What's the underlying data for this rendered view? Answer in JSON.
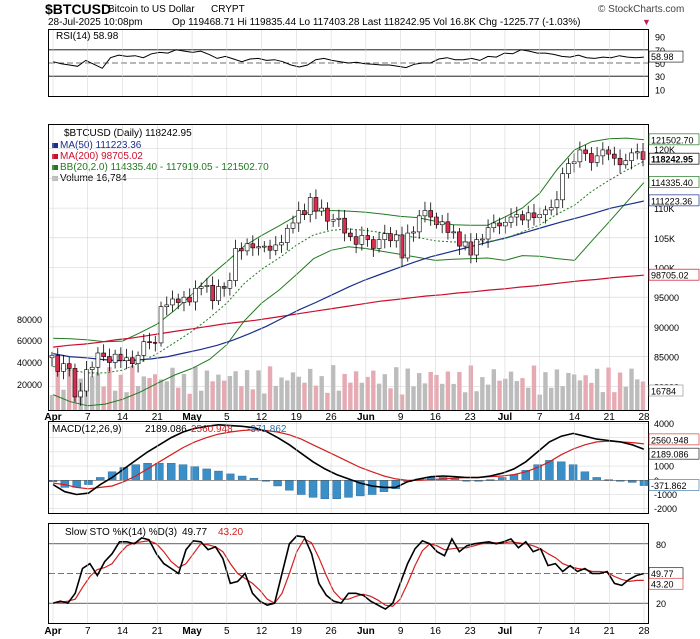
{
  "header": {
    "symbol": "$BTCUSD",
    "name": "Bitcoin to US Dollar",
    "exchange": "CRYPT",
    "copyright": "© StockCharts.com",
    "date": "28-Jul-2025 10:08pm",
    "quote": "Op 119468.71  Hi 119835.44  Lo 117403.28  Last 118242.95  Vol 16.8K  Chg -1225.77 (-1.03%)",
    "change_arrow": "▼"
  },
  "colors": {
    "up": "#ffffff",
    "down": "#d7304f",
    "candle_outline": "#000000",
    "ma50": "#1a2f8c",
    "ma200": "#c8102e",
    "bollinger": "#217a1f",
    "volume_up": "#bcbcbc",
    "volume_down": "#e6aab3",
    "macd_line": "#000000",
    "signal_line": "#d21f1f",
    "histogram": "#3a8fc9",
    "grid": "#d0d0d0"
  },
  "chart_data": {
    "type": "candlestick",
    "x_tick_labels": [
      "Apr",
      "7",
      "14",
      "21",
      "May",
      "5",
      "12",
      "19",
      "26",
      "Jun",
      "9",
      "16",
      "23",
      "Jul",
      "7",
      "14",
      "21",
      "28"
    ],
    "rsi": {
      "label": "RSI(14) 58.98",
      "ticks": [
        90,
        70,
        50,
        30,
        10
      ],
      "last": "58.98",
      "last_value": 58.98,
      "values": [
        52,
        49,
        47,
        45,
        54,
        48,
        42,
        58,
        62,
        60,
        61,
        58,
        64,
        66,
        65,
        70,
        68,
        66,
        68,
        63,
        57,
        60,
        56,
        52,
        56,
        57,
        54,
        55,
        52,
        47,
        44,
        47,
        55,
        57,
        54,
        52,
        50,
        51,
        49,
        48,
        47,
        47,
        45,
        43,
        48,
        50,
        50,
        56,
        58,
        55,
        55,
        57,
        54,
        60,
        59,
        65,
        64,
        70,
        68,
        65,
        65,
        63,
        60,
        59,
        62,
        58,
        57,
        59,
        58,
        61,
        59,
        58,
        59
      ]
    },
    "price": {
      "legend": [
        {
          "text": "$BTCUSD (Daily) 118242.95"
        },
        {
          "text": "MA(50) 111223.36"
        },
        {
          "text": "MA(200) 98705.02"
        },
        {
          "text": "BB(20,2.0) 114335.40 - 117919.05 - 121502.70"
        },
        {
          "text": "Volume 16,784"
        }
      ],
      "y_ticks": [
        "120K",
        "115K",
        "110K",
        "105K",
        "100K",
        "95000",
        "90000",
        "85000",
        "80000"
      ],
      "value_tags": [
        "121502.70",
        "118242.95",
        "114335.40",
        "111223.36",
        "98705.02"
      ],
      "ylim": [
        76000,
        124000
      ],
      "closes": [
        85200,
        82500,
        83800,
        83000,
        78200,
        79200,
        82800,
        83200,
        85600,
        85000,
        84000,
        85400,
        84300,
        84800,
        83800,
        85200,
        87500,
        87400,
        87300,
        93400,
        93700,
        94700,
        94100,
        95000,
        94200,
        96500,
        96800,
        97000,
        94400,
        96800,
        96500,
        97800,
        103200,
        102800,
        104000,
        103300,
        103500,
        103600,
        102900,
        103800,
        104200,
        106600,
        107500,
        109600,
        108900,
        111800,
        109500,
        110000,
        107800,
        108100,
        108300,
        105800,
        105200,
        103900,
        105400,
        104700,
        103200,
        104700,
        105700,
        104500,
        105500,
        101600,
        105800,
        106000,
        108700,
        109600,
        108500,
        107200,
        107700,
        105900,
        106000,
        103600,
        104300,
        102100,
        104700,
        104800,
        106700,
        107500,
        107000,
        107600,
        108500,
        108900,
        108000,
        109200,
        108400,
        108900,
        109700,
        110100,
        111400,
        115800,
        117500,
        117800,
        119800,
        119200,
        117700,
        118800,
        119800,
        119100,
        118400,
        117300,
        118000,
        119300,
        119500,
        118200
      ],
      "ma50": [
        85500,
        85000,
        84800,
        84500,
        84300,
        84400,
        84600,
        85000,
        85600,
        86200,
        86900,
        87800,
        88900,
        90100,
        91500,
        92900,
        94100,
        95400,
        96700,
        97900,
        98900,
        99900,
        100900,
        101800,
        102500,
        103200,
        103900,
        104600,
        105300,
        106100,
        106900,
        107700,
        108400,
        109200,
        110000,
        110600,
        111200
      ],
      "ma200": [
        86600,
        86900,
        87100,
        87400,
        87800,
        88100,
        88500,
        88900,
        89300,
        89700,
        90100,
        90500,
        90800,
        91100,
        91500,
        91900,
        92300,
        92700,
        93100,
        93500,
        93900,
        94300,
        94600,
        94900,
        95200,
        95400,
        95700,
        95900,
        96200,
        96400,
        96700,
        96900,
        97200,
        97500,
        97800,
        98000,
        98300,
        98500,
        98700
      ],
      "bb_upper": [
        88100,
        88000,
        87800,
        87500,
        87600,
        89000,
        90500,
        92800,
        95500,
        98500,
        101000,
        103600,
        105400,
        107000,
        108700,
        109500,
        109600,
        109500,
        109300,
        109000,
        108600,
        108400,
        107800,
        107200,
        107100,
        107100,
        108500,
        110000,
        112500,
        116500,
        119800,
        121200,
        121700,
        121800,
        121500
      ],
      "bb_lower": [
        78600,
        77400,
        76700,
        77000,
        77800,
        79000,
        80500,
        81900,
        83000,
        84500,
        87000,
        91000,
        94000,
        96200,
        98800,
        101500,
        102900,
        103500,
        103200,
        102700,
        102200,
        101700,
        101200,
        101400,
        101500,
        101600,
        101200,
        102000,
        101900,
        101500,
        101200,
        104500,
        107700,
        111000,
        114335
      ],
      "volume_label": "16784"
    },
    "macd": {
      "label": "MACD(12,26,9)",
      "macd_value": "2189.086",
      "signal_value": "2560.948",
      "hist_value": "-371.862",
      "ticks": [
        "4000",
        "3000",
        "2000",
        "1000",
        "0",
        "-1000",
        "-2000"
      ],
      "ylim": [
        -2300,
        4100
      ],
      "macd": [
        -300,
        -800,
        -1000,
        -900,
        -300,
        200,
        800,
        1400,
        2000,
        2500,
        3000,
        3400,
        3650,
        3800,
        3900,
        3850,
        3800,
        3700,
        3450,
        3000,
        2500,
        1900,
        1300,
        800,
        400,
        100,
        -200,
        -400,
        -500,
        -500,
        -100,
        100,
        250,
        300,
        250,
        200,
        200,
        300,
        500,
        800,
        1300,
        2000,
        2700,
        3100,
        3300,
        3100,
        2900,
        2800,
        2700,
        2500,
        2189
      ],
      "signal": [
        -200,
        -300,
        -500,
        -600,
        -500,
        -400,
        -100,
        300,
        800,
        1300,
        1800,
        2300,
        2700,
        3000,
        3250,
        3400,
        3500,
        3550,
        3500,
        3400,
        3200,
        2900,
        2500,
        2100,
        1700,
        1300,
        900,
        600,
        300,
        100,
        0,
        0,
        50,
        100,
        150,
        200,
        200,
        250,
        300,
        400,
        600,
        900,
        1300,
        1800,
        2200,
        2500,
        2700,
        2750,
        2700,
        2650,
        2561
      ]
    },
    "stoch": {
      "label": "Slow STO %K(14) %D(3)",
      "k_value": "49.77",
      "d_value": "43.20",
      "ticks": [
        "80",
        "50",
        "20"
      ],
      "ylim": [
        0,
        100
      ],
      "k": [
        20,
        22,
        20,
        30,
        55,
        60,
        48,
        62,
        70,
        82,
        82,
        80,
        86,
        84,
        70,
        60,
        55,
        50,
        74,
        83,
        82,
        74,
        77,
        65,
        40,
        42,
        50,
        30,
        22,
        18,
        20,
        50,
        80,
        88,
        87,
        70,
        40,
        28,
        22,
        20,
        30,
        30,
        28,
        22,
        18,
        14,
        20,
        40,
        60,
        75,
        83,
        80,
        72,
        68,
        85,
        72,
        78,
        80,
        81,
        82,
        80,
        82,
        85,
        76,
        82,
        72,
        75,
        58,
        60,
        52,
        58,
        52,
        55,
        50,
        50,
        52,
        40,
        38,
        44,
        48,
        50
      ],
      "d": [
        20,
        21,
        22,
        24,
        36,
        47,
        54,
        56,
        60,
        70,
        78,
        81,
        82,
        83,
        80,
        72,
        62,
        56,
        60,
        70,
        80,
        79,
        77,
        72,
        60,
        50,
        45,
        40,
        33,
        24,
        20,
        30,
        50,
        72,
        85,
        81,
        66,
        48,
        32,
        24,
        24,
        27,
        29,
        27,
        23,
        18,
        17,
        24,
        40,
        58,
        73,
        80,
        78,
        74,
        75,
        76,
        76,
        78,
        80,
        81,
        81,
        81,
        82,
        81,
        80,
        78,
        75,
        70,
        66,
        60,
        57,
        55,
        54,
        52,
        52,
        51,
        47,
        44,
        42,
        43,
        43
      ]
    }
  }
}
